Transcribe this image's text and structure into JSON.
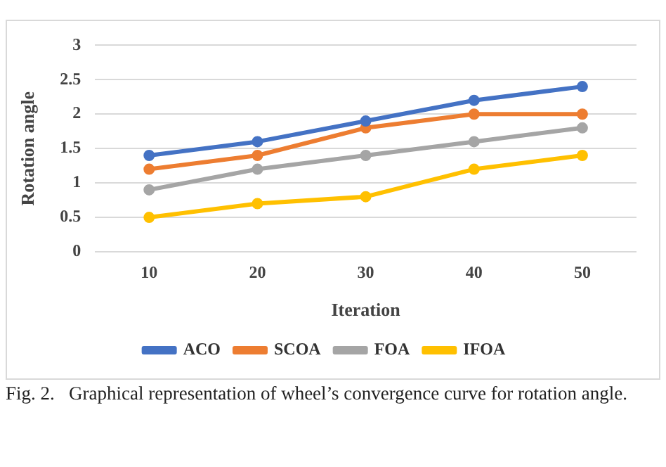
{
  "chart_data": {
    "type": "line",
    "xlabel": "Iteration",
    "ylabel": "Rotation angle",
    "categories": [
      "10",
      "20",
      "30",
      "40",
      "50"
    ],
    "series": [
      {
        "name": "ACO",
        "color": "#4472c4",
        "values": [
          1.4,
          1.6,
          1.9,
          2.2,
          2.4
        ]
      },
      {
        "name": "SCOA",
        "color": "#ed7d31",
        "values": [
          1.2,
          1.4,
          1.8,
          2.0,
          2.0
        ]
      },
      {
        "name": "FOA",
        "color": "#a5a5a5",
        "values": [
          0.9,
          1.2,
          1.4,
          1.6,
          1.8
        ]
      },
      {
        "name": "IFOA",
        "color": "#ffc000",
        "values": [
          0.5,
          0.7,
          0.8,
          1.2,
          1.4
        ]
      }
    ],
    "ylim": [
      0,
      3
    ],
    "yticks": [
      0,
      0.5,
      1,
      1.5,
      2,
      2.5,
      3
    ],
    "grid": "y",
    "legend": "bottom",
    "marker": "circle",
    "line_style": "solid",
    "annotations": [
      "Fig. 2.   Graphical representation of wheel’s convergence curve for rotation angle."
    ]
  }
}
